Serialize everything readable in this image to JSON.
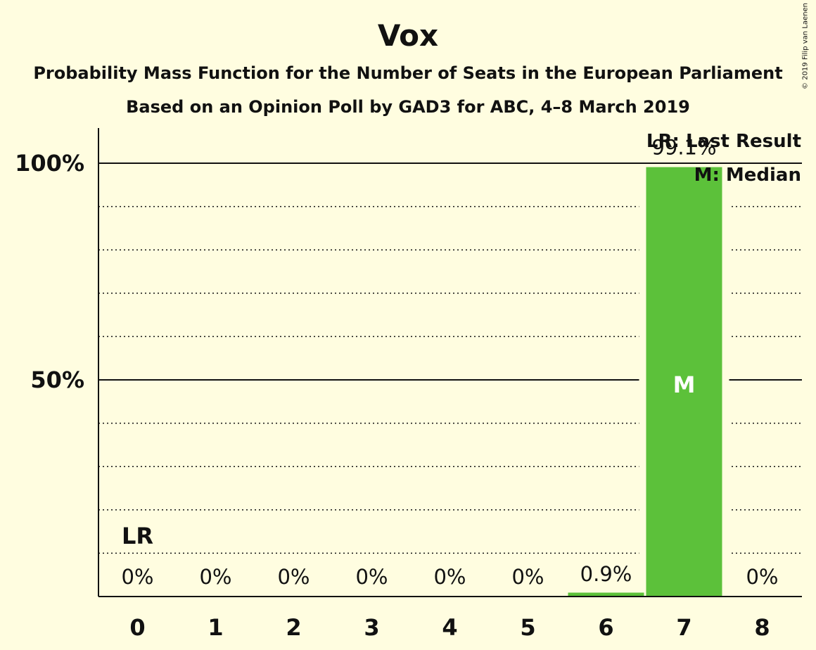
{
  "title": "Vox",
  "subtitle_line1": "Probability Mass Function for the Number of Seats in the European Parliament",
  "subtitle_line2": "Based on an Opinion Poll by GAD3 for ABC, 4–8 March 2019",
  "copyright": "© 2019 Filip van Laenen",
  "legend": {
    "last_result": "LR: Last Result",
    "median": "M: Median"
  },
  "colors": {
    "background": "#FFFDE0",
    "bar": "#5CC13A",
    "axis": "#111111"
  },
  "chart_data": {
    "type": "bar",
    "categories": [
      "0",
      "1",
      "2",
      "3",
      "4",
      "5",
      "6",
      "7",
      "8"
    ],
    "values": [
      0,
      0,
      0,
      0,
      0,
      0,
      0.9,
      99.1,
      0
    ],
    "value_labels": [
      "0%",
      "0%",
      "0%",
      "0%",
      "0%",
      "0%",
      "0.9%",
      "99.1%",
      "0%"
    ],
    "ylim": [
      0,
      100
    ],
    "yticks": [
      {
        "value": 50,
        "label": "50%"
      },
      {
        "value": 100,
        "label": "100%"
      }
    ],
    "minor_grid_step": 10,
    "last_result": {
      "category": "0",
      "label": "LR"
    },
    "median": {
      "category": "7",
      "label": "M"
    },
    "legend_position": "top-right"
  }
}
